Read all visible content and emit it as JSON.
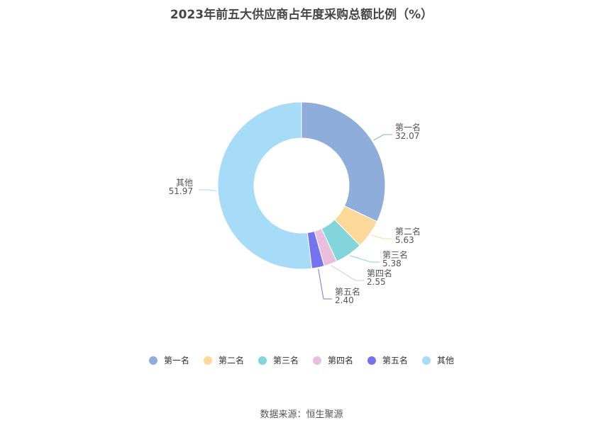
{
  "chart_data": {
    "type": "pie",
    "variant": "donut",
    "title": "2023年前五大供应商占年度采购总额比例（%）",
    "slices": [
      {
        "label": "第一名",
        "value": 32.07,
        "value_label": "32.07",
        "color": "#8faddb"
      },
      {
        "label": "第二名",
        "value": 5.63,
        "value_label": "5.63",
        "color": "#fcd899"
      },
      {
        "label": "第三名",
        "value": 5.38,
        "value_label": "5.38",
        "color": "#82d5da"
      },
      {
        "label": "第四名",
        "value": 2.55,
        "value_label": "2.55",
        "color": "#e8bfdf"
      },
      {
        "label": "第五名",
        "value": 2.4,
        "value_label": "2.40",
        "color": "#7474f0"
      },
      {
        "label": "其他",
        "value": 51.97,
        "value_label": "51.97",
        "color": "#a6dcf8"
      }
    ],
    "legend_position": "bottom"
  },
  "footer": {
    "source": "数据来源：恒生聚源"
  }
}
